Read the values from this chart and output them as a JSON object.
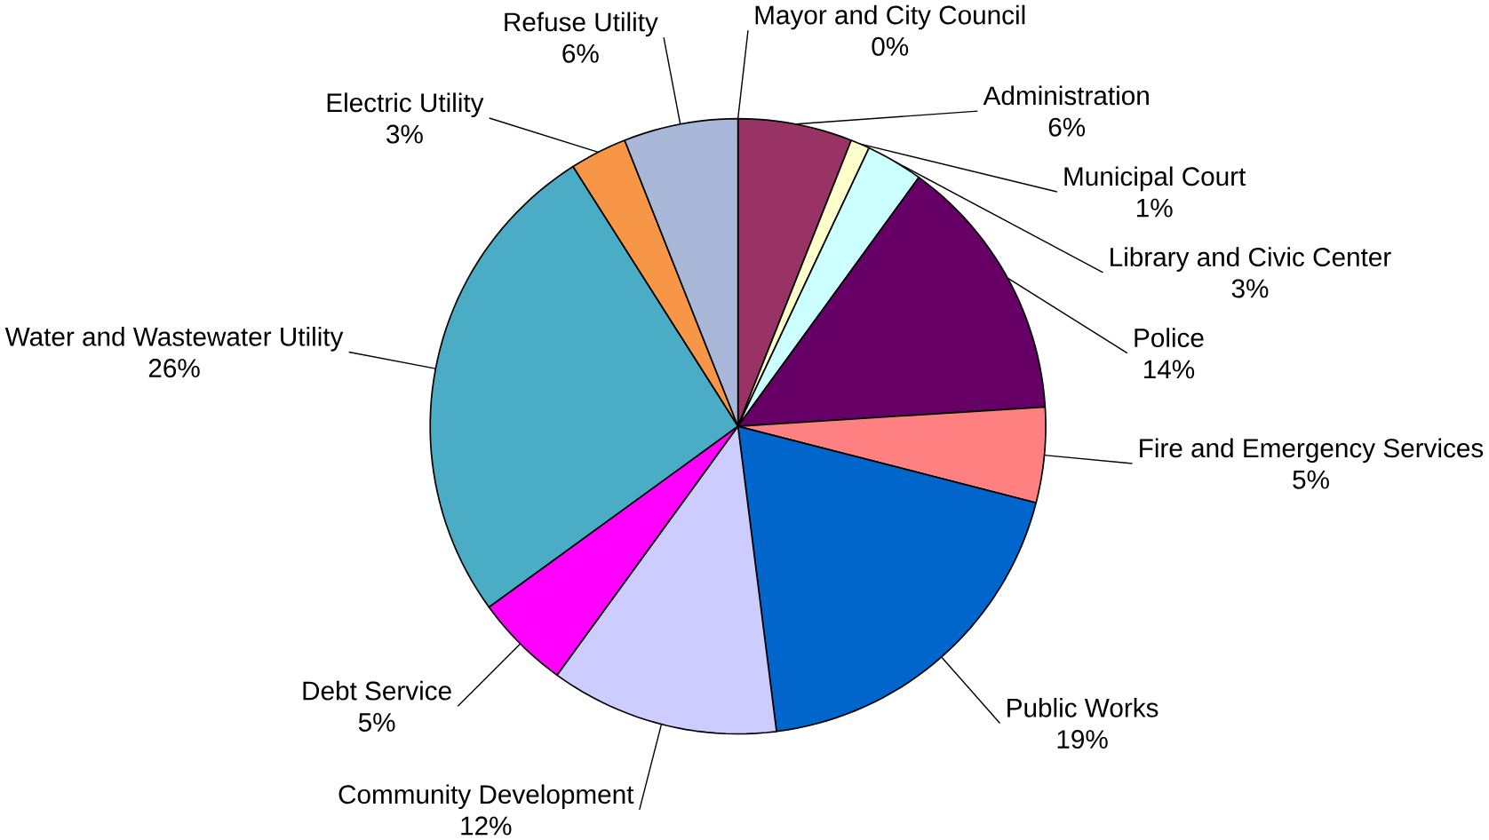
{
  "chart_data": {
    "type": "pie",
    "categories": [
      "Mayor and City Council",
      "Administration",
      "Municipal Court",
      "Library and Civic Center",
      "Police",
      "Fire and Emergency Services",
      "Public Works",
      "Community Development",
      "Debt Service",
      "Water and Wastewater Utility",
      "Electric Utility",
      "Refuse Utility"
    ],
    "values": [
      0,
      6,
      1,
      3,
      14,
      5,
      19,
      12,
      5,
      26,
      3,
      6
    ],
    "value_labels": [
      "0%",
      "6%",
      "1%",
      "3%",
      "14%",
      "5%",
      "19%",
      "12%",
      "5%",
      "26%",
      "3%",
      "6%"
    ],
    "colors": [
      "#333333",
      "#993366",
      "#ffffcc",
      "#ccffff",
      "#660066",
      "#ff8080",
      "#0066cc",
      "#ccccff",
      "#ff00ff",
      "#4bacc6",
      "#f79646",
      "#a9b8d8"
    ]
  }
}
